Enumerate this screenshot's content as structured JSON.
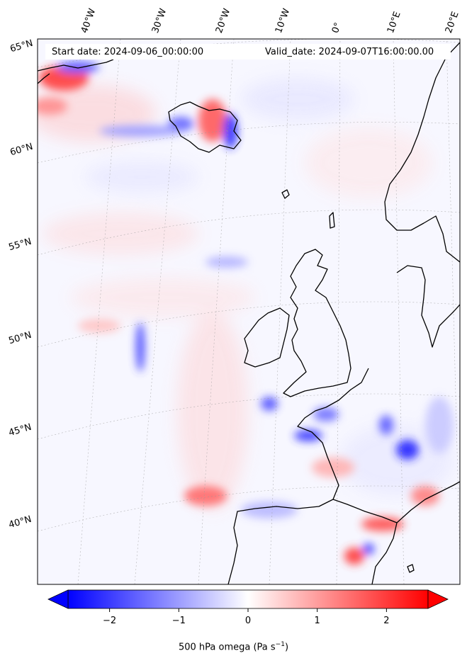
{
  "header": {
    "start_date": "Start date: 2024-09-06_00:00:00",
    "valid_date": "Valid_date: 2024-09-07T16:00:00.00"
  },
  "map": {
    "projection": "polar-stereographic",
    "extent_lon": [
      -45,
      22
    ],
    "extent_lat": [
      37,
      65
    ],
    "longitude_labels": [
      "40°W",
      "30°W",
      "20°W",
      "10°W",
      "0°",
      "10°E",
      "20°E"
    ],
    "latitude_labels": [
      "65°N",
      "60°N",
      "55°N",
      "50°N",
      "45°N",
      "40°N"
    ],
    "gridlines": true,
    "field": "500 hPa vertical velocity (omega)",
    "coastline_color": "#000000"
  },
  "colorbar": {
    "label_main": "500 hPa omega (Pa s",
    "label_sup": "−1",
    "label_end": ")",
    "vmin": -2.6,
    "vmax": 2.6,
    "tick_values": [
      -2,
      -1,
      0,
      1,
      2
    ],
    "tick_labels": [
      "−2",
      "−1",
      "0",
      "1",
      "2"
    ],
    "extend": "both",
    "colormap": "bwr",
    "color_min": "#0000ff",
    "color_mid": "#ffffff",
    "color_max": "#ff0000"
  }
}
